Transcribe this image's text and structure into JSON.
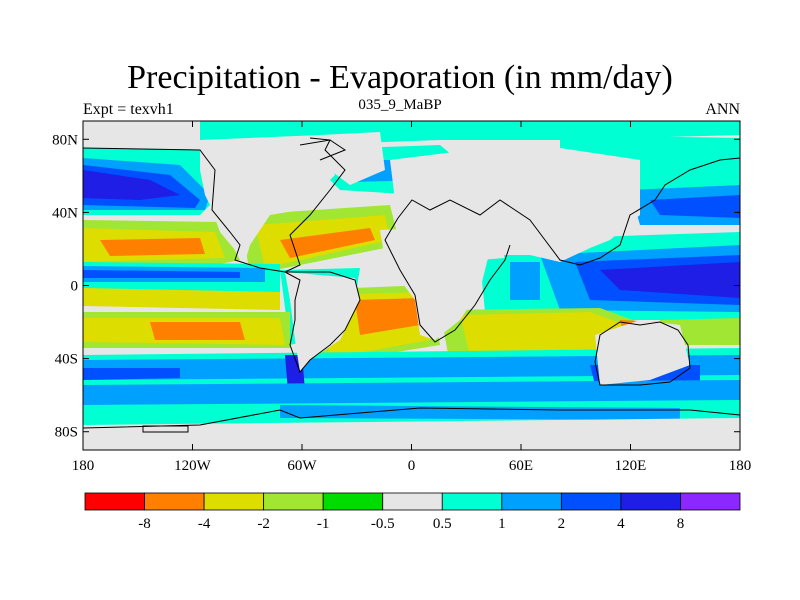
{
  "plot": {
    "title": "Precipitation - Evaporation (in mm/day)",
    "left_string": "Expt = texvh1",
    "center_string": "035_9_MaBP",
    "right_string": "ANN"
  },
  "axes": {
    "x_ticks": [
      {
        "value": -180,
        "label": "180"
      },
      {
        "value": -120,
        "label": "120W"
      },
      {
        "value": -60,
        "label": "60W"
      },
      {
        "value": 0,
        "label": "0"
      },
      {
        "value": 60,
        "label": "60E"
      },
      {
        "value": 120,
        "label": "120E"
      },
      {
        "value": 180,
        "label": "180"
      }
    ],
    "y_ticks": [
      {
        "value": 80,
        "label": "80N"
      },
      {
        "value": 40,
        "label": "40N"
      },
      {
        "value": 0,
        "label": "0"
      },
      {
        "value": -40,
        "label": "40S"
      },
      {
        "value": -80,
        "label": "80S"
      }
    ],
    "xlim": [
      -180,
      180
    ],
    "ylim": [
      -90,
      90
    ]
  },
  "colorbar": {
    "colors": [
      "#ff0000",
      "#ff7f00",
      "#dddd00",
      "#a0e632",
      "#00dc00",
      "#e6e6e6",
      "#00ffd2",
      "#00a0ff",
      "#0050ff",
      "#1e1ee6",
      "#8c28ff"
    ],
    "labels": [
      "-8",
      "-4",
      "-2",
      "-1",
      "-0.5",
      "0.5",
      "1",
      "2",
      "4",
      "8"
    ]
  },
  "map_colors": {
    "background": "#e6e6e6",
    "red": "#ff0000",
    "orange": "#ff7f00",
    "yellow": "#dddd00",
    "lightgreen": "#a0e632",
    "green": "#00dc00",
    "cyan": "#00ffd2",
    "skyblue": "#00a0ff",
    "blue": "#0050ff",
    "darkblue": "#1e1ee6",
    "coastline": "#000000"
  }
}
